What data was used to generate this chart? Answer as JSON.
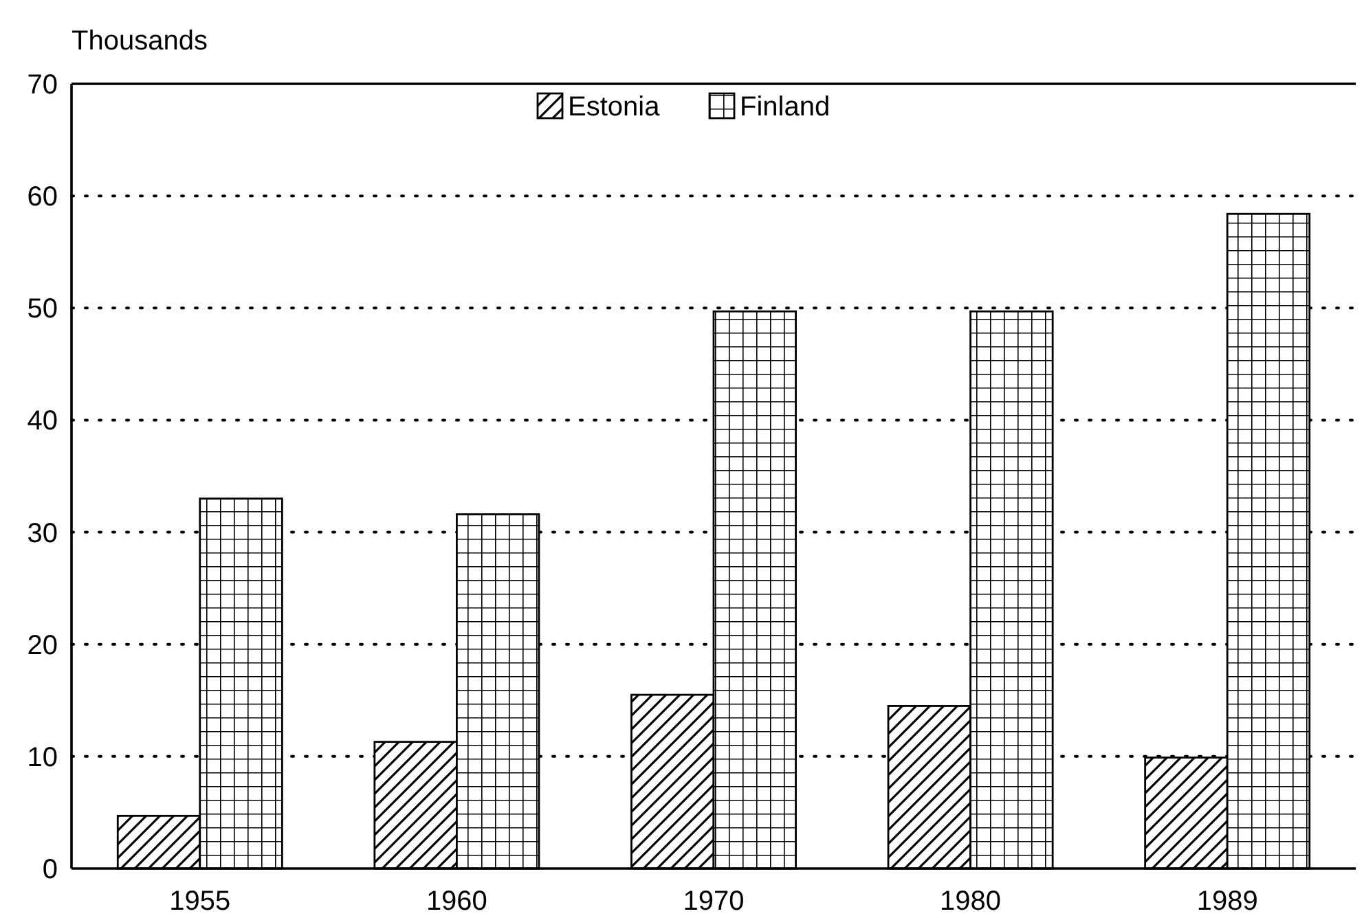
{
  "chart_data": {
    "type": "bar",
    "ylabel": "Thousands",
    "categories": [
      "1955",
      "1960",
      "1970",
      "1980",
      "1989"
    ],
    "series": [
      {
        "name": "Estonia",
        "color": "#000000",
        "values": [
          4.7,
          11.3,
          15.5,
          14.5,
          9.9
        ]
      },
      {
        "name": "Finland",
        "color": "#000000",
        "values": [
          33.0,
          31.6,
          49.7,
          49.7,
          58.4
        ]
      }
    ],
    "ylim": [
      0,
      70
    ],
    "yticks": [
      0,
      10,
      20,
      30,
      40,
      50,
      60,
      70
    ],
    "grid": "y",
    "legend": "top"
  }
}
